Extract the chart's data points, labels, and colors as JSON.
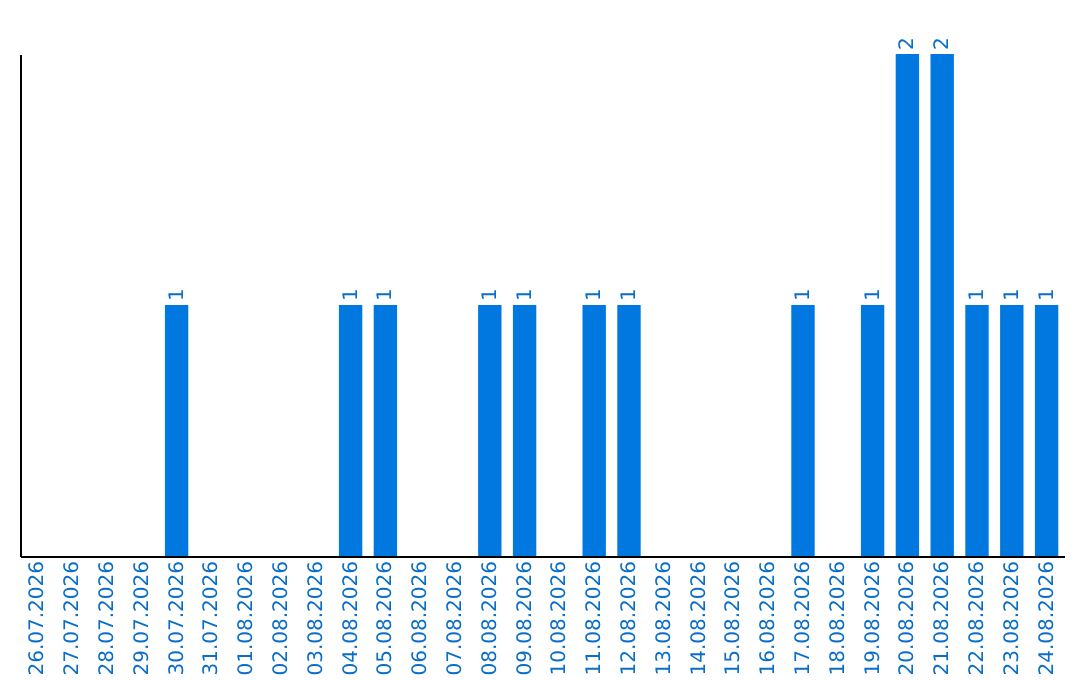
{
  "chart_data": {
    "type": "bar",
    "categories": [
      "26.07.2026",
      "27.07.2026",
      "28.07.2026",
      "29.07.2026",
      "30.07.2026",
      "31.07.2026",
      "01.08.2026",
      "02.08.2026",
      "03.08.2026",
      "04.08.2026",
      "05.08.2026",
      "06.08.2026",
      "07.08.2026",
      "08.08.2026",
      "09.08.2026",
      "10.08.2026",
      "11.08.2026",
      "12.08.2026",
      "13.08.2026",
      "14.08.2026",
      "15.08.2026",
      "16.08.2026",
      "17.08.2026",
      "18.08.2026",
      "19.08.2026",
      "20.08.2026",
      "21.08.2026",
      "22.08.2026",
      "23.08.2026",
      "24.08.2026"
    ],
    "values": [
      0,
      0,
      0,
      0,
      1,
      0,
      0,
      0,
      0,
      1,
      1,
      0,
      0,
      1,
      1,
      0,
      1,
      1,
      0,
      0,
      0,
      0,
      1,
      0,
      1,
      2,
      2,
      1,
      1,
      1
    ],
    "value_labels": [
      null,
      null,
      null,
      null,
      "1",
      null,
      null,
      null,
      null,
      "1",
      "1",
      null,
      null,
      "1",
      "1",
      null,
      "1",
      "1",
      null,
      null,
      null,
      null,
      "1",
      null,
      "1",
      "2",
      "2",
      "1",
      "1",
      "1"
    ],
    "color": "#0078e0",
    "ylim": [
      0,
      2
    ],
    "grid": false,
    "tick_labels": "x"
  }
}
